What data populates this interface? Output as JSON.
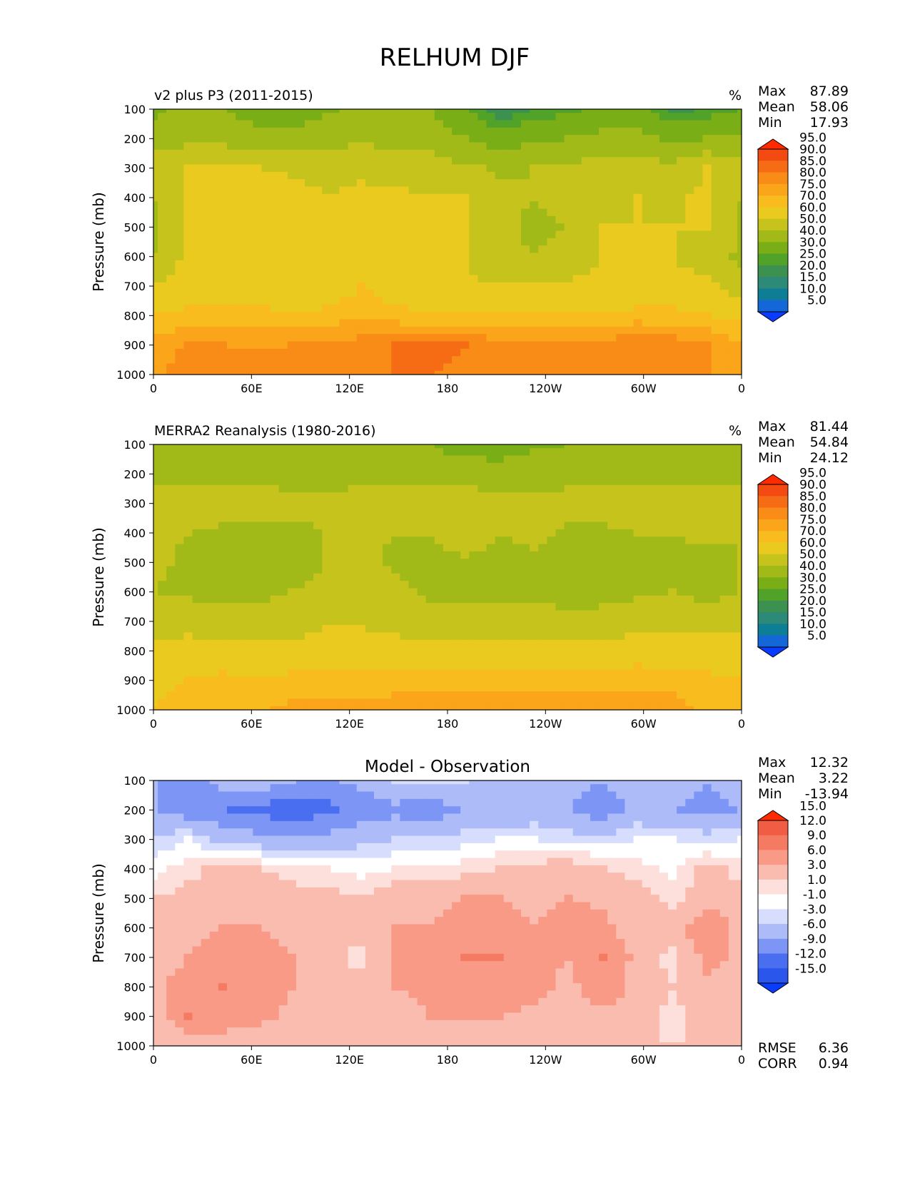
{
  "figure": {
    "title": "RELHUM DJF"
  },
  "chart_data": [
    {
      "type": "heatmap",
      "panel": "model",
      "title": "v2 plus P3 (2011-2015)",
      "units": "%",
      "xlabel": "",
      "ylabel": "Pressure (mb)",
      "xticks": [
        "0",
        "60E",
        "120E",
        "180",
        "120W",
        "60W",
        "0"
      ],
      "yticks": [
        "100",
        "200",
        "300",
        "400",
        "500",
        "600",
        "700",
        "800",
        "900",
        "1000"
      ],
      "ylim": [
        1000,
        100
      ],
      "stats": [
        {
          "label": "Max",
          "value": "87.89"
        },
        {
          "label": "Mean",
          "value": "58.06"
        },
        {
          "label": "Min",
          "value": "17.93"
        }
      ],
      "colorbar": {
        "levels": [
          "5.0",
          "10.0",
          "15.0",
          "20.0",
          "25.0",
          "30.0",
          "40.0",
          "50.0",
          "60.0",
          "70.0",
          "75.0",
          "80.0",
          "85.0",
          "90.0",
          "95.0"
        ],
        "colors": [
          "#0a3cff",
          "#1467d8",
          "#0e7e96",
          "#2d8a78",
          "#3d9150",
          "#51a229",
          "#7aae16",
          "#a2ba18",
          "#c6c41c",
          "#ebca20",
          "#f8bc1e",
          "#faa51a",
          "#f98c16",
          "#f66c14",
          "#f34a12",
          "#ff2a00"
        ]
      },
      "field": {
        "note": "Approximate relative humidity (%) read from contour colors",
        "rows": [
          [
            38,
            42,
            40,
            34,
            33,
            38,
            42,
            41,
            40,
            30,
            20,
            25,
            28,
            35,
            34,
            22,
            26,
            30
          ],
          [
            45,
            47,
            46,
            45,
            44,
            47,
            48,
            47,
            45,
            40,
            35,
            38,
            40,
            42,
            42,
            38,
            40,
            40
          ],
          [
            55,
            60,
            62,
            60,
            58,
            56,
            58,
            56,
            55,
            52,
            48,
            50,
            52,
            56,
            55,
            52,
            60,
            55
          ],
          [
            50,
            62,
            64,
            65,
            65,
            60,
            62,
            62,
            60,
            60,
            52,
            50,
            52,
            58,
            60,
            58,
            62,
            50
          ],
          [
            48,
            63,
            65,
            66,
            65,
            62,
            64,
            63,
            62,
            60,
            52,
            48,
            50,
            60,
            60,
            60,
            60,
            48
          ],
          [
            50,
            63,
            64,
            64,
            65,
            63,
            68,
            64,
            62,
            60,
            52,
            50,
            52,
            60,
            60,
            60,
            55,
            48
          ],
          [
            60,
            66,
            66,
            65,
            64,
            64,
            70,
            66,
            64,
            62,
            60,
            60,
            62,
            62,
            66,
            64,
            62,
            55
          ],
          [
            70,
            72,
            72,
            72,
            71,
            72,
            74,
            72,
            70,
            70,
            70,
            70,
            70,
            70,
            72,
            72,
            70,
            68
          ],
          [
            77,
            80,
            80,
            79,
            80,
            80,
            82,
            85,
            86,
            85,
            82,
            80,
            80,
            82,
            84,
            83,
            80,
            76
          ],
          [
            78,
            84,
            84,
            83,
            84,
            82,
            82,
            85,
            85,
            84,
            82,
            82,
            82,
            82,
            84,
            84,
            80,
            76
          ]
        ]
      }
    },
    {
      "type": "heatmap",
      "panel": "observation",
      "title": "MERRA2 Reanalysis (1980-2016)",
      "units": "%",
      "xlabel": "",
      "ylabel": "Pressure (mb)",
      "xticks": [
        "0",
        "60E",
        "120E",
        "180",
        "120W",
        "60W",
        "0"
      ],
      "yticks": [
        "100",
        "200",
        "300",
        "400",
        "500",
        "600",
        "700",
        "800",
        "900",
        "1000"
      ],
      "ylim": [
        1000,
        100
      ],
      "stats": [
        {
          "label": "Max",
          "value": "81.44"
        },
        {
          "label": "Mean",
          "value": "54.84"
        },
        {
          "label": "Min",
          "value": "24.12"
        }
      ],
      "colorbar": {
        "levels": [
          "5.0",
          "10.0",
          "15.0",
          "20.0",
          "25.0",
          "30.0",
          "40.0",
          "50.0",
          "60.0",
          "70.0",
          "75.0",
          "80.0",
          "85.0",
          "90.0",
          "95.0"
        ],
        "colors": [
          "#0a3cff",
          "#1467d8",
          "#0e7e96",
          "#2d8a78",
          "#3d9150",
          "#51a229",
          "#7aae16",
          "#a2ba18",
          "#c6c41c",
          "#ebca20",
          "#f8bc1e",
          "#faa51a",
          "#f98c16",
          "#f66c14",
          "#f34a12",
          "#ff2a00"
        ]
      },
      "field": {
        "note": "Approximate relative humidity (%) read from contour colors",
        "rows": [
          [
            40,
            42,
            42,
            42,
            42,
            40,
            42,
            40,
            40,
            36,
            35,
            38,
            40,
            42,
            42,
            40,
            42,
            42
          ],
          [
            46,
            48,
            48,
            48,
            47,
            46,
            47,
            46,
            46,
            45,
            44,
            46,
            46,
            47,
            47,
            46,
            48,
            47
          ],
          [
            55,
            54,
            55,
            53,
            52,
            52,
            54,
            56,
            56,
            56,
            54,
            52,
            54,
            55,
            55,
            54,
            55,
            55
          ],
          [
            52,
            50,
            48,
            48,
            48,
            50,
            52,
            50,
            50,
            56,
            50,
            52,
            48,
            48,
            50,
            50,
            52,
            50
          ],
          [
            52,
            48,
            48,
            46,
            47,
            50,
            52,
            48,
            46,
            48,
            48,
            48,
            44,
            46,
            48,
            48,
            46,
            50
          ],
          [
            50,
            48,
            48,
            48,
            50,
            52,
            56,
            52,
            48,
            48,
            48,
            48,
            46,
            48,
            48,
            50,
            46,
            50
          ],
          [
            55,
            56,
            52,
            52,
            54,
            58,
            58,
            56,
            54,
            54,
            54,
            54,
            52,
            52,
            56,
            58,
            56,
            56
          ],
          [
            62,
            64,
            64,
            65,
            64,
            66,
            66,
            64,
            64,
            64,
            62,
            64,
            64,
            64,
            66,
            64,
            64,
            64
          ],
          [
            68,
            70,
            72,
            70,
            72,
            72,
            72,
            74,
            74,
            74,
            74,
            74,
            74,
            74,
            74,
            74,
            72,
            70
          ],
          [
            70,
            74,
            74,
            74,
            76,
            76,
            76,
            76,
            77,
            77,
            77,
            76,
            76,
            77,
            77,
            77,
            74,
            72
          ]
        ]
      }
    },
    {
      "type": "heatmap",
      "panel": "difference",
      "title": "Model - Observation",
      "units": "",
      "xlabel": "",
      "ylabel": "Pressure (mb)",
      "xticks": [
        "0",
        "60E",
        "120E",
        "180",
        "120W",
        "60W",
        "0"
      ],
      "yticks": [
        "100",
        "200",
        "300",
        "400",
        "500",
        "600",
        "700",
        "800",
        "900",
        "1000"
      ],
      "ylim": [
        1000,
        100
      ],
      "stats": [
        {
          "label": "Max",
          "value": "12.32"
        },
        {
          "label": "Mean",
          "value": "3.22"
        },
        {
          "label": "Min",
          "value": "-13.94"
        }
      ],
      "extra_stats": [
        {
          "label": "RMSE",
          "value": "6.36"
        },
        {
          "label": "CORR",
          "value": "0.94"
        }
      ],
      "colorbar": {
        "levels": [
          "-15.0",
          "-12.0",
          "-9.0",
          "-6.0",
          "-3.0",
          "-1.0",
          "1.0",
          "3.0",
          "6.0",
          "9.0",
          "12.0",
          "15.0"
        ],
        "colors": [
          "#0a3cff",
          "#2a56ec",
          "#4a6ef0",
          "#7d96f6",
          "#adbcf9",
          "#d7ddfc",
          "#ffffff",
          "#fde0dc",
          "#fbbcb0",
          "#f89a86",
          "#f57a62",
          "#f15c44",
          "#ff2a00"
        ]
      },
      "field": {
        "note": "Approximate model minus observation difference (%) read from contour colors",
        "rows": [
          [
            -6,
            -8,
            -5,
            -4,
            -6,
            -7,
            -5,
            -3,
            -2,
            -3,
            -5,
            -4,
            -5,
            -6,
            -4,
            -5,
            -6,
            -5
          ],
          [
            -6,
            -8,
            -9,
            -10,
            -11,
            -10,
            -8,
            -7,
            -8,
            -6,
            -6,
            -5,
            -6,
            -8,
            -5,
            -6,
            -7,
            -6
          ],
          [
            -3,
            -1,
            -4,
            -5,
            -6,
            -5,
            -4,
            -3,
            -3,
            -2,
            -1,
            -1,
            -2,
            -2,
            -1,
            -1,
            -2,
            -1
          ],
          [
            0,
            2,
            4,
            3,
            2,
            1,
            0,
            1,
            1,
            2,
            3,
            4,
            5,
            3,
            2,
            0,
            4,
            2
          ],
          [
            3,
            4,
            5,
            5,
            4,
            4,
            3,
            5,
            5,
            6,
            6,
            5,
            6,
            5,
            5,
            2,
            5,
            4
          ],
          [
            4,
            5,
            6,
            6,
            5,
            3,
            4,
            6,
            6,
            8,
            8,
            6,
            8,
            7,
            4,
            5,
            8,
            5
          ],
          [
            4,
            6,
            7,
            8,
            6,
            4,
            2,
            6,
            6,
            9,
            9,
            7,
            6,
            9,
            5,
            2,
            7,
            5
          ],
          [
            5,
            8,
            9,
            8,
            6,
            5,
            4,
            6,
            7,
            8,
            8,
            7,
            5,
            8,
            5,
            3,
            5,
            5
          ],
          [
            4,
            9,
            8,
            7,
            5,
            5,
            5,
            4,
            6,
            6,
            6,
            5,
            4,
            5,
            4,
            2,
            4,
            4
          ],
          [
            3,
            4,
            4,
            4,
            3,
            4,
            3,
            3,
            4,
            4,
            4,
            4,
            3,
            4,
            3,
            3,
            3,
            3
          ]
        ]
      }
    }
  ]
}
